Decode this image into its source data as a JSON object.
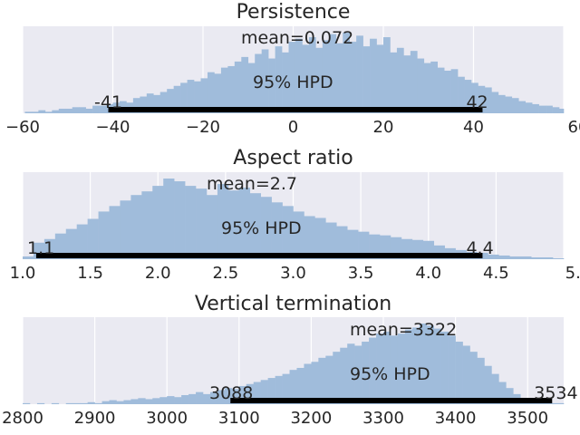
{
  "chart_data": [
    {
      "type": "histogram",
      "title": "Persistence",
      "xlim": [
        -60,
        60
      ],
      "xticks": [
        -60,
        -40,
        -20,
        0,
        20,
        40,
        60
      ],
      "xtick_labels": [
        "−60",
        "−40",
        "−20",
        "0",
        "20",
        "40",
        "60"
      ],
      "grid": true,
      "mean_label": "mean=0.072",
      "hpd_label": "95% HPD",
      "hpd": {
        "low": -41,
        "high": 42,
        "low_label": "-41",
        "high_label": "42"
      },
      "bins": {
        "start": -59.5,
        "width": 1.5,
        "counts": [
          1,
          1,
          2,
          1,
          2,
          3,
          3,
          4,
          4,
          3,
          5,
          5,
          6,
          7,
          8,
          7,
          10,
          11,
          13,
          12,
          14,
          16,
          18,
          20,
          22,
          21,
          23,
          27,
          26,
          30,
          31,
          34,
          37,
          33,
          39,
          42,
          36,
          44,
          40,
          47,
          49,
          45,
          50,
          43,
          48,
          52,
          46,
          53,
          47,
          51,
          44,
          49,
          45,
          50,
          40,
          43,
          38,
          41,
          36,
          33,
          34,
          30,
          28,
          29,
          24,
          22,
          20,
          18,
          17,
          14,
          12,
          11,
          10,
          8,
          7,
          6,
          5,
          5,
          4,
          3
        ]
      }
    },
    {
      "type": "histogram",
      "title": "Aspect ratio",
      "xlim": [
        1.0,
        5.0
      ],
      "xticks": [
        1.0,
        1.5,
        2.0,
        2.5,
        3.0,
        3.5,
        4.0,
        4.5,
        5.0
      ],
      "xtick_labels": [
        "1.0",
        "1.5",
        "2.0",
        "2.5",
        "3.0",
        "3.5",
        "4.0",
        "4.5",
        "5.0"
      ],
      "grid": true,
      "mean_label": "mean=2.7",
      "hpd_label": "95% HPD",
      "hpd": {
        "low": 1.1,
        "high": 4.4,
        "low_label": "1.1",
        "high_label": "4.4"
      },
      "bins": {
        "start": 1.0,
        "width": 0.08,
        "counts": [
          3,
          18,
          22,
          28,
          33,
          38,
          44,
          52,
          58,
          64,
          70,
          74,
          80,
          88,
          85,
          80,
          77,
          70,
          82,
          75,
          78,
          72,
          68,
          62,
          58,
          52,
          47,
          45,
          40,
          36,
          32,
          30,
          27,
          26,
          24,
          22,
          21,
          20,
          15,
          12,
          10,
          8,
          7,
          5,
          4,
          3,
          3,
          2,
          2,
          1
        ]
      }
    },
    {
      "type": "histogram",
      "title": "Vertical termination",
      "xlim": [
        2800,
        3550
      ],
      "xticks": [
        2800,
        2900,
        3000,
        3100,
        3200,
        3300,
        3400,
        3500
      ],
      "xtick_labels": [
        "2800",
        "2900",
        "3000",
        "3100",
        "3200",
        "3300",
        "3400",
        "3500"
      ],
      "grid": true,
      "mean_label": "mean=3322",
      "hpd_label": "95% HPD",
      "hpd": {
        "low": 3088,
        "high": 3534,
        "low_label": "3088",
        "high_label": "3534"
      },
      "bins": {
        "start": 2800,
        "width": 10,
        "counts": [
          1,
          0,
          1,
          0,
          1,
          0,
          1,
          1,
          1,
          2,
          1,
          3,
          4,
          3,
          4,
          5,
          6,
          5,
          6,
          7,
          8,
          7,
          9,
          10,
          12,
          10,
          12,
          14,
          16,
          15,
          18,
          20,
          22,
          24,
          26,
          28,
          30,
          34,
          36,
          40,
          42,
          46,
          48,
          52,
          56,
          60,
          58,
          62,
          66,
          70,
          72,
          68,
          70,
          74,
          76,
          80,
          78,
          75,
          72,
          68,
          62,
          58,
          52,
          46,
          38,
          30,
          22,
          16,
          10,
          6,
          4,
          2,
          1,
          1,
          1
        ]
      }
    }
  ]
}
